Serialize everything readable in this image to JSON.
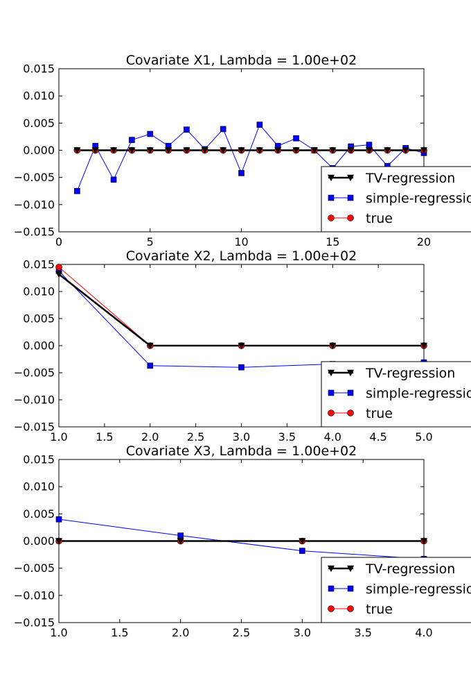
{
  "chart_data": [
    {
      "type": "line",
      "title": "Covariate X1, Lambda = 1.00e+02",
      "xlabel": "",
      "ylabel": "",
      "xlim": [
        0,
        20
      ],
      "ylim": [
        -0.015,
        0.015
      ],
      "xticks": [
        "0",
        "5",
        "10",
        "15",
        "20"
      ],
      "yticks": [
        "0.015",
        "0.010",
        "0.005",
        "0.000",
        "−0.005",
        "−0.010",
        "−0.015"
      ],
      "grid": false,
      "legend_position": "lower-right",
      "x": [
        1,
        2,
        3,
        4,
        5,
        6,
        7,
        8,
        9,
        10,
        11,
        12,
        13,
        14,
        15,
        16,
        17,
        18,
        19,
        20
      ],
      "series": [
        {
          "name": "TV-regression",
          "color": "#000000",
          "marker": "triangle-down",
          "values": [
            0,
            0,
            0,
            0,
            0,
            0,
            0,
            0,
            0,
            0,
            0,
            0,
            0,
            0,
            0,
            0,
            0,
            0,
            0,
            0
          ]
        },
        {
          "name": "simple-regression",
          "color": "#0000ff",
          "marker": "square",
          "values": [
            -0.0075,
            0.0008,
            -0.0054,
            0.0019,
            0.003,
            0.0008,
            0.0038,
            0.0002,
            0.0039,
            -0.0042,
            0.0047,
            0.0008,
            0.0022,
            0.0,
            -0.0033,
            0.0007,
            0.001,
            -0.0029,
            0.0004,
            -0.0005
          ]
        },
        {
          "name": "true",
          "color": "#ff0000",
          "marker": "circle",
          "values": [
            0,
            0,
            0,
            0,
            0,
            0,
            0,
            0,
            0,
            0,
            0,
            0,
            0,
            0,
            0,
            0,
            0,
            0,
            0,
            0
          ]
        }
      ]
    },
    {
      "type": "line",
      "title": "Covariate X2, Lambda = 1.00e+02",
      "xlabel": "",
      "ylabel": "",
      "xlim": [
        1.0,
        5.0
      ],
      "ylim": [
        -0.015,
        0.015
      ],
      "xticks": [
        "1.0",
        "1.5",
        "2.0",
        "2.5",
        "3.0",
        "3.5",
        "4.0",
        "4.5",
        "5.0"
      ],
      "yticks": [
        "0.015",
        "0.010",
        "0.005",
        "0.000",
        "−0.005",
        "−0.010",
        "−0.015"
      ],
      "grid": false,
      "legend_position": "lower-right",
      "x": [
        1,
        2,
        3,
        4,
        5
      ],
      "series": [
        {
          "name": "TV-regression",
          "color": "#000000",
          "marker": "triangle-down",
          "values": [
            0.0132,
            0.0,
            0.0,
            0.0,
            0.0
          ]
        },
        {
          "name": "simple-regression",
          "color": "#0000ff",
          "marker": "square",
          "values": [
            0.0138,
            -0.0037,
            -0.004,
            -0.0034,
            -0.0031
          ]
        },
        {
          "name": "true",
          "color": "#ff0000",
          "marker": "circle",
          "values": [
            0.0145,
            0.0,
            0.0,
            0.0,
            0.0
          ]
        }
      ]
    },
    {
      "type": "line",
      "title": "Covariate X3, Lambda = 1.00e+02",
      "xlabel": "",
      "ylabel": "",
      "xlim": [
        1.0,
        4.0
      ],
      "ylim": [
        -0.015,
        0.015
      ],
      "xticks": [
        "1.0",
        "1.5",
        "2.0",
        "2.5",
        "3.0",
        "3.5",
        "4.0"
      ],
      "yticks": [
        "0.015",
        "0.010",
        "0.005",
        "0.000",
        "−0.005",
        "−0.010",
        "−0.015"
      ],
      "grid": false,
      "legend_position": "lower-right",
      "x": [
        1,
        2,
        3,
        4
      ],
      "series": [
        {
          "name": "TV-regression",
          "color": "#000000",
          "marker": "triangle-down",
          "values": [
            0.0,
            0.0,
            0.0,
            0.0
          ]
        },
        {
          "name": "simple-regression",
          "color": "#0000ff",
          "marker": "square",
          "values": [
            0.004,
            0.001,
            -0.0018,
            -0.0033
          ]
        },
        {
          "name": "true",
          "color": "#ff0000",
          "marker": "circle",
          "values": [
            0.0,
            0.0,
            0.0,
            0.0
          ]
        }
      ]
    }
  ]
}
